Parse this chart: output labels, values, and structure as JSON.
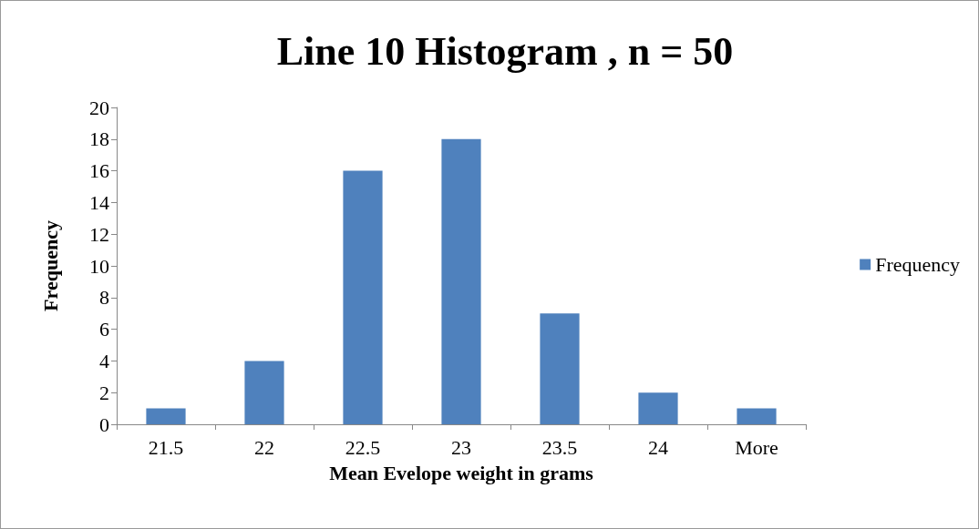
{
  "chart_data": {
    "type": "bar",
    "title": "Line 10 Histogram , n = 50",
    "xlabel": "Mean Evelope weight in grams",
    "ylabel": "Frequency",
    "categories": [
      "21.5",
      "22",
      "22.5",
      "23",
      "23.5",
      "24",
      "More"
    ],
    "series": [
      {
        "name": "Frequency",
        "color": "#4f81bd",
        "values": [
          1,
          4,
          16,
          18,
          7,
          2,
          1
        ]
      }
    ],
    "ylim": [
      0,
      20
    ],
    "yticks": [
      0,
      2,
      4,
      6,
      8,
      10,
      12,
      14,
      16,
      18,
      20
    ],
    "grid": false,
    "legend": "right"
  }
}
